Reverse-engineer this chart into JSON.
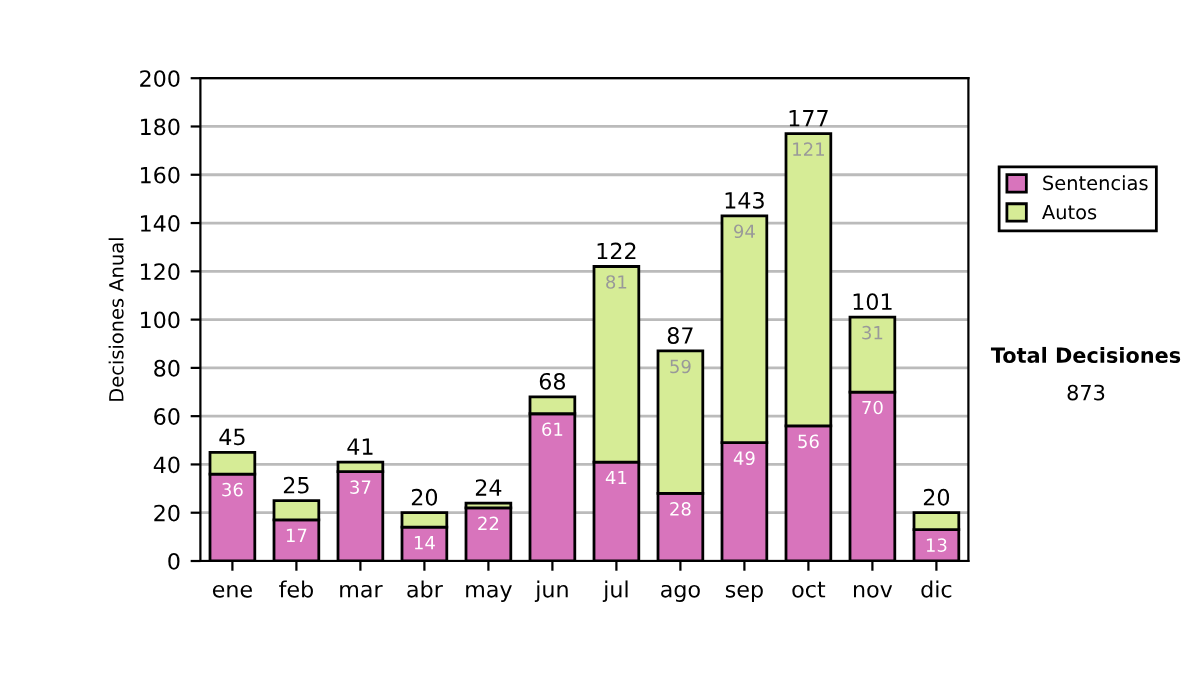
{
  "chart_data": {
    "type": "bar",
    "stacked": true,
    "ylabel": "Decisiones Anual",
    "categories": [
      "ene",
      "feb",
      "mar",
      "abr",
      "may",
      "jun",
      "jul",
      "ago",
      "sep",
      "oct",
      "nov",
      "dic"
    ],
    "series": [
      {
        "name": "Sentencias",
        "color": "#d874bc",
        "values": [
          36,
          17,
          37,
          14,
          22,
          61,
          41,
          28,
          49,
          56,
          70,
          13
        ],
        "value_labels": [
          "36",
          "17",
          "37",
          "14",
          "22",
          "61",
          "41",
          "28",
          "49",
          "56",
          "70",
          "13"
        ]
      },
      {
        "name": "Autos",
        "color": "#d6ec96",
        "values": [
          9,
          8,
          4,
          6,
          2,
          7,
          81,
          59,
          94,
          121,
          31,
          7
        ],
        "value_labels": [
          null,
          null,
          null,
          null,
          null,
          null,
          "81",
          "59",
          "94",
          "121",
          "31",
          null
        ]
      }
    ],
    "totals": [
      "45",
      "25",
      "41",
      "20",
      "24",
      "68",
      "122",
      "87",
      "143",
      "177",
      "101",
      "20"
    ],
    "ylim": [
      0,
      200
    ],
    "yticks": [
      0,
      20,
      40,
      60,
      80,
      100,
      120,
      140,
      160,
      180,
      200
    ],
    "grid": "y",
    "legend": "right",
    "annotations": [
      "Total Decisiones",
      "873"
    ]
  }
}
